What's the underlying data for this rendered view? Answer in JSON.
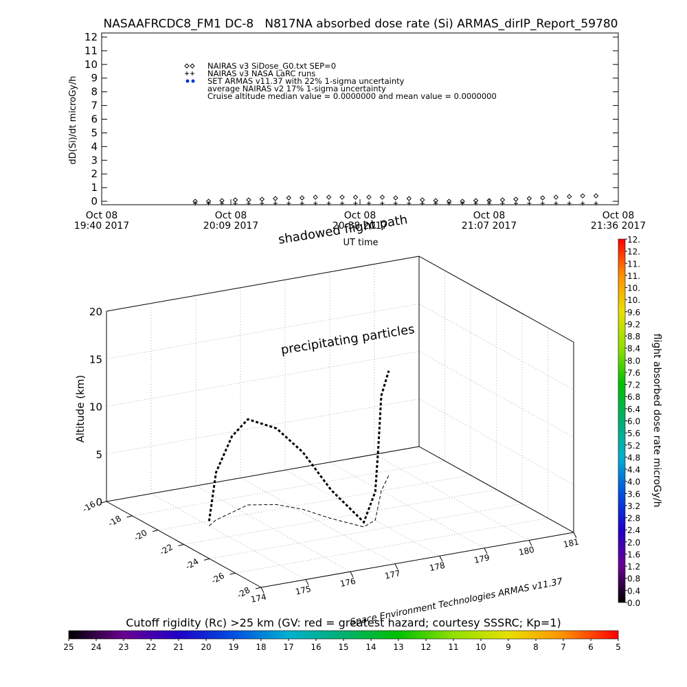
{
  "chart_data": [
    {
      "type": "line",
      "title": "NASAAFRCDC8_FM1 DC-8   N817NA absorbed dose rate (Si) ARMAS_dirIP_Report_59780",
      "ylabel": "dD(Si)/dt microGy/h",
      "xlabel": "UT time",
      "x": [
        "20:01",
        "20:04",
        "20:07",
        "20:10",
        "20:13",
        "20:16",
        "20:19",
        "20:22",
        "20:25",
        "20:28",
        "20:31",
        "20:34",
        "20:37",
        "20:40",
        "20:43",
        "20:46",
        "20:49",
        "20:52",
        "20:55",
        "20:58",
        "21:01",
        "21:04",
        "21:07",
        "21:10",
        "21:13",
        "21:16",
        "21:19",
        "21:22",
        "21:25",
        "21:28",
        "21:31"
      ],
      "xlim": [
        "19:40",
        "21:36"
      ],
      "xticks": [
        {
          "value": "19:40",
          "label": [
            "Oct 08",
            "19:40 2017"
          ]
        },
        {
          "value": "20:09",
          "label": [
            "Oct 08",
            "20:09 2017"
          ]
        },
        {
          "value": "20:38",
          "label": [
            "Oct 08",
            "20:38 2017"
          ]
        },
        {
          "value": "21:07",
          "label": [
            "Oct 08",
            "21:07 2017"
          ]
        },
        {
          "value": "21:36",
          "label": [
            "Oct 08",
            "21:36 2017"
          ]
        }
      ],
      "ylim": [
        -0.25,
        12.3
      ],
      "yticks": [
        0,
        1,
        2,
        3,
        4,
        5,
        6,
        7,
        8,
        9,
        10,
        11,
        12
      ],
      "series": [
        {
          "name": "NAIRAS v3 SiDose_G0.txt SEP=0",
          "marker": "diamond",
          "color": "#000000",
          "values": [
            0.0,
            0.0,
            0.05,
            0.1,
            0.1,
            0.15,
            0.2,
            0.25,
            0.25,
            0.3,
            0.3,
            0.3,
            0.3,
            0.3,
            0.3,
            0.25,
            0.2,
            0.1,
            0.05,
            0.0,
            0.0,
            0.05,
            0.05,
            0.1,
            0.15,
            0.2,
            0.25,
            0.3,
            0.35,
            0.4,
            0.4
          ]
        },
        {
          "name": "NAIRAS v3 NASA LaRC runs",
          "marker": "plus",
          "color": "#000000",
          "values": [
            -0.15,
            -0.15,
            -0.15,
            -0.15,
            -0.15,
            -0.15,
            -0.15,
            -0.15,
            -0.15,
            -0.15,
            -0.15,
            -0.15,
            -0.15,
            -0.15,
            -0.15,
            -0.15,
            -0.15,
            -0.15,
            -0.15,
            -0.15,
            -0.15,
            -0.15,
            -0.15,
            -0.15,
            -0.15,
            -0.15,
            -0.15,
            -0.15,
            -0.15,
            -0.15,
            -0.15
          ]
        }
      ],
      "annotations": [
        {
          "text": "SET ARMAS v11.37 with 22% 1-sigma uncertainty",
          "color": "#0033cc"
        },
        {
          "text": "average NAIRAS v2 17% 1-sigma uncertainty"
        },
        {
          "text": "Cruise altitude median value = 0.0000000 and mean value = 0.0000000"
        }
      ]
    },
    {
      "type": "path3d",
      "zlabel": "Altitude (km)",
      "xlim": [
        174,
        181
      ],
      "xticks": [
        174,
        175,
        176,
        177,
        178,
        179,
        180,
        181
      ],
      "ylim": [
        -28,
        -16
      ],
      "yticks": [
        -16,
        -18,
        -20,
        -22,
        -24,
        -26,
        -28
      ],
      "zlim": [
        0,
        20
      ],
      "zticks": [
        0,
        5,
        10,
        15,
        20
      ],
      "color": "#000000",
      "lon": [
        175.0,
        175.3,
        175.8,
        176.3,
        176.8,
        177.1,
        177.3,
        177.6,
        178.0,
        178.5,
        179.0,
        179.6
      ],
      "lat": [
        -20.5,
        -20.0,
        -19.5,
        -19.0,
        -19.5,
        -20.5,
        -22.0,
        -23.5,
        -23.0,
        -21.5,
        -20.0,
        -18.5
      ],
      "alt": [
        0.5,
        5,
        8,
        9,
        8,
        6,
        3,
        0.5,
        3,
        6,
        10,
        11
      ],
      "annotations": [
        "shadowed flight path",
        "precipitating particles",
        "Space Environment Technologies ARMAS v11.37"
      ]
    },
    {
      "type": "colorbar",
      "orientation": "vertical",
      "label": "flight absorbed dose rate microGy/h",
      "lim": [
        0,
        12
      ],
      "colormap": [
        "#000000",
        "#6a0090",
        "#2000c8",
        "#0050e0",
        "#00b0d0",
        "#00b070",
        "#00c000",
        "#90e000",
        "#e8e000",
        "#ff9000",
        "#ff0000"
      ],
      "ticks": [
        {
          "value": 0,
          "label": "0.0"
        },
        0.4,
        0.8,
        1.2,
        1.6,
        {
          "value": 2,
          "label": "2.0"
        },
        2.4,
        2.8,
        3.2,
        3.6,
        {
          "value": 4,
          "label": "4.0"
        },
        4.4,
        4.8,
        5.2,
        5.6,
        {
          "value": 6,
          "label": "6.0"
        },
        6.4,
        6.8,
        7.2,
        7.6,
        {
          "value": 8,
          "label": "8.0"
        },
        8.4,
        8.8,
        9.2,
        9.6,
        {
          "value": 10,
          "label": "10."
        },
        {
          "value": 10.4,
          "label": "10."
        },
        {
          "value": 10.8,
          "label": "11."
        },
        {
          "value": 11.2,
          "label": "11."
        },
        {
          "value": 11.6,
          "label": "12."
        },
        {
          "value": 12,
          "label": "12."
        }
      ]
    },
    {
      "type": "colorbar",
      "orientation": "horizontal",
      "label": "Cutoff rigidity (Rc) >25 km (GV: red = greatest hazard; courtesy SSSRC; Kp=1)",
      "lim": [
        25,
        5
      ],
      "colormap": [
        "#000000",
        "#6a0090",
        "#2000c8",
        "#0050e0",
        "#00b0d0",
        "#00b070",
        "#00c000",
        "#90e000",
        "#e8e000",
        "#ff9000",
        "#ff0000"
      ],
      "ticks": [
        25,
        24,
        23,
        22,
        21,
        20,
        19,
        18,
        17,
        16,
        15,
        14,
        13,
        12,
        11,
        10,
        9,
        8,
        7,
        6,
        5
      ]
    }
  ]
}
